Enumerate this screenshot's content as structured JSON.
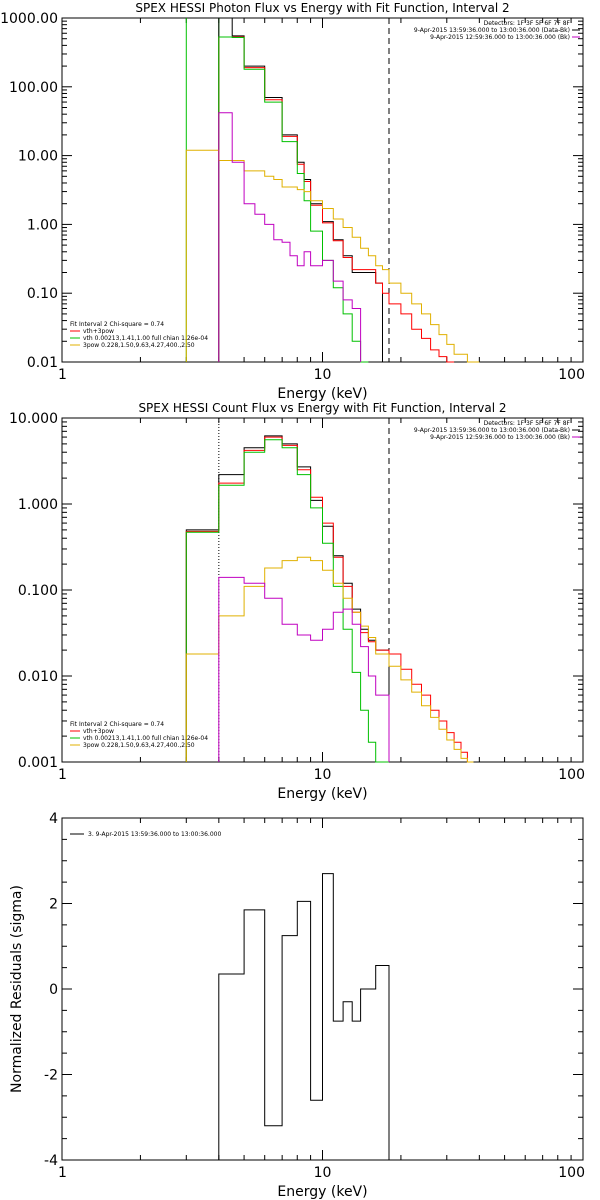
{
  "chart_data": [
    {
      "type": "line",
      "title": "SPEX HESSI Photon Flux vs Energy with Fit Function, Interval 2",
      "xlabel": "Energy (keV)",
      "ylabel": "",
      "x_scale": "log",
      "y_scale": "log",
      "xlim": [
        1,
        100
      ],
      "ylim": [
        0.01,
        1000
      ],
      "x_tick_labels": [
        "1",
        "10",
        "100"
      ],
      "y_tick_labels": [
        "0.01",
        "0.10",
        "1.00",
        "10.00",
        "100.00",
        "1000.00"
      ],
      "y_tick_values": [
        0.01,
        0.1,
        1,
        10,
        100,
        1000
      ],
      "vlines": [
        {
          "x": 3.0,
          "style": "solid",
          "color": "#00c000"
        },
        {
          "x": 4.0,
          "style": "solid",
          "color": "#00c000"
        },
        {
          "x": 18.0,
          "style": "dashed",
          "color": "#000000"
        }
      ],
      "legend_right": [
        {
          "text": "Detectors: 1F 3F 5F 6F 7F 8F",
          "color": ""
        },
        {
          "text": "9-Apr-2015 13:59:36.000 to 13:00:36.000 (Data-Bk)",
          "color": "#000000"
        },
        {
          "text": "9-Apr-2015 12:59:36.000 to 13:00:36.000 (Bk)",
          "color": "#c000c0"
        }
      ],
      "legend_left": [
        {
          "text": "Fit Interval 2   Chi-square = 0.74",
          "color": ""
        },
        {
          "text": "vth+3pow",
          "color": "#ff0000"
        },
        {
          "text": "vth 0.00213,1.41,1.00  full chian 1.26e-04",
          "color": "#00c000"
        },
        {
          "text": "3pow 0.228,1.50,9.63,4.27,400.,2.50",
          "color": "#e0b000"
        }
      ],
      "edges": [
        3.0,
        4.0,
        4.5,
        5.0,
        5.5,
        6.0,
        6.5,
        7.0,
        7.5,
        8.0,
        8.5,
        9.0,
        10.0,
        11.0,
        12.0,
        13.0,
        14.0,
        15.0,
        16.0,
        17.0,
        18.0,
        20.0,
        22.0,
        24.0,
        26.0,
        28.0,
        30.0,
        32.0,
        36.0,
        40.0
      ],
      "series": [
        {
          "name": "",
          "color": "#000000",
          "step": true,
          "start_bin": 1,
          "values": [
            1000,
            550,
            200,
            200,
            70,
            70,
            20,
            20,
            8,
            4.5,
            2.0,
            1.1,
            0.6,
            0.35,
            0.2,
            0.2,
            0.2,
            0.14
          ]
        },
        {
          "name": "vth+3pow",
          "color": "#ff0000",
          "step": true,
          "start_bin": 1,
          "values": [
            530,
            530,
            190,
            190,
            65,
            65,
            19,
            19,
            7.5,
            4.2,
            1.9,
            1.05,
            0.58,
            0.33,
            0.22,
            0.22,
            0.22,
            0.14,
            0.1,
            0.07,
            0.05,
            0.03,
            0.022,
            0.015,
            0.012,
            0.01
          ]
        },
        {
          "name": "vth",
          "color": "#00c000",
          "step": true,
          "start_bin": 1,
          "values": [
            530,
            520,
            180,
            180,
            60,
            60,
            16,
            16,
            5.5,
            2.2,
            0.8,
            0.3,
            0.12,
            0.05,
            0.02,
            0.01
          ]
        },
        {
          "name": "3pow",
          "color": "#e0b000",
          "step": true,
          "start_bin": 0,
          "values": [
            12,
            8.5,
            8.5,
            6.0,
            6.0,
            5.0,
            4.5,
            3.5,
            3.5,
            3.2,
            3.0,
            2.2,
            1.7,
            1.2,
            0.9,
            0.65,
            0.45,
            0.35,
            0.25,
            0.22,
            0.14,
            0.1,
            0.07,
            0.05,
            0.035,
            0.025,
            0.018,
            0.013,
            0.01
          ]
        },
        {
          "name": "",
          "color": "#c000c0",
          "step": true,
          "start_bin": 1,
          "values": [
            42,
            8,
            2.0,
            1.4,
            1.0,
            0.6,
            0.55,
            0.35,
            0.25,
            0.4,
            0.25,
            0.3,
            0.15,
            0.08,
            0.06
          ]
        }
      ]
    },
    {
      "type": "line",
      "title": "SPEX HESSI Count Flux vs Energy with Fit Function, Interval 2",
      "xlabel": "Energy (keV)",
      "ylabel": "",
      "x_scale": "log",
      "y_scale": "log",
      "xlim": [
        1,
        100
      ],
      "ylim": [
        0.001,
        10
      ],
      "x_tick_labels": [
        "1",
        "10",
        "100"
      ],
      "y_tick_labels": [
        "0.001",
        "0.010",
        "0.100",
        "1.000",
        "10.000"
      ],
      "y_tick_values": [
        0.001,
        0.01,
        0.1,
        1,
        10
      ],
      "vlines": [
        {
          "x": 4.0,
          "style": "dotted",
          "color": "#000000"
        },
        {
          "x": 18.0,
          "style": "dashed",
          "color": "#000000"
        }
      ],
      "legend_right": [
        {
          "text": "Detectors: 1F 3F 5F 6F 7F 8F",
          "color": ""
        },
        {
          "text": "9-Apr-2015 13:59:36.000 to 13:00:36.000 (Data-Bk)",
          "color": "#000000"
        },
        {
          "text": "9-Apr-2015 12:59:36.000 to 13:00:36.000 (Bk)",
          "color": "#c000c0"
        }
      ],
      "legend_left": [
        {
          "text": "Fit Interval 2   Chi-square = 0.74",
          "color": ""
        },
        {
          "text": "vth+3pow",
          "color": "#ff0000"
        },
        {
          "text": "vth 0.00213,1.41,1.00  full chian 1.26e-04",
          "color": "#00c000"
        },
        {
          "text": "3pow 0.228,1.50,9.63,4.27,400.,2.50",
          "color": "#e0b000"
        }
      ],
      "edges": [
        3.0,
        4.0,
        5.0,
        6.0,
        7.0,
        8.0,
        9.0,
        10.0,
        11.0,
        12.0,
        13.0,
        14.0,
        15.0,
        16.0,
        18.0,
        20.0,
        22.0,
        24.0,
        26.0,
        28.0,
        30.0,
        32.0,
        34.0,
        36.0,
        38.0,
        40.0
      ],
      "series": [
        {
          "name": "",
          "color": "#000000",
          "step": true,
          "start_bin": 0,
          "values": [
            0.5,
            2.2,
            4.5,
            6.2,
            5.0,
            2.7,
            1.1,
            0.55,
            0.25,
            0.12,
            0.06,
            0.035,
            0.026,
            0.02
          ]
        },
        {
          "name": "vth+3pow",
          "color": "#ff0000",
          "step": true,
          "start_bin": 0,
          "values": [
            0.48,
            1.75,
            4.2,
            6.0,
            4.8,
            2.5,
            1.2,
            0.6,
            0.24,
            0.11,
            0.055,
            0.032,
            0.025,
            0.02,
            0.018,
            0.012,
            0.008,
            0.006,
            0.004,
            0.003,
            0.0022,
            0.0017,
            0.0013,
            0.001
          ]
        },
        {
          "name": "vth",
          "color": "#00c000",
          "step": true,
          "start_bin": 0,
          "values": [
            0.47,
            1.65,
            4.0,
            5.6,
            4.5,
            2.2,
            0.9,
            0.35,
            0.11,
            0.035,
            0.011,
            0.004,
            0.0017,
            0.001
          ]
        },
        {
          "name": "3pow",
          "color": "#e0b000",
          "step": true,
          "start_bin": 0,
          "values": [
            0.018,
            0.05,
            0.11,
            0.18,
            0.22,
            0.24,
            0.22,
            0.17,
            0.12,
            0.08,
            0.055,
            0.038,
            0.028,
            0.018,
            0.013,
            0.009,
            0.0065,
            0.0045,
            0.0033,
            0.0024,
            0.0018,
            0.0014,
            0.0011,
            0.001
          ]
        },
        {
          "name": "",
          "color": "#c000c0",
          "step": true,
          "start_bin": 1,
          "values": [
            0.14,
            0.12,
            0.08,
            0.04,
            0.03,
            0.026,
            0.035,
            0.055,
            0.06,
            0.04,
            0.022,
            0.01,
            0.006
          ]
        }
      ]
    },
    {
      "type": "line",
      "title": "",
      "xlabel": "Energy (keV)",
      "ylabel": "Normalized Residuals (sigma)",
      "x_scale": "log",
      "y_scale": "linear",
      "xlim": [
        1,
        100
      ],
      "ylim": [
        -4,
        4
      ],
      "x_tick_labels": [
        "1",
        "10",
        "100"
      ],
      "y_tick_labels": [
        "-4",
        "-2",
        "0",
        "2",
        "4"
      ],
      "y_tick_values": [
        -4,
        -2,
        0,
        2,
        4
      ],
      "legend": {
        "text": "3.  9-Apr-2015 13:59:36.000 to 13:00:36.000",
        "position": "top-left"
      },
      "edges": [
        4.0,
        5.0,
        6.0,
        7.0,
        8.0,
        9.0,
        10.0,
        11.0,
        12.0,
        13.0,
        14.0,
        16.0,
        18.0
      ],
      "series": [
        {
          "name": "",
          "color": "#000000",
          "step": true,
          "start_bin": 0,
          "values": [
            0.35,
            1.85,
            -3.2,
            1.25,
            2.05,
            -2.6,
            2.7,
            -0.75,
            -0.3,
            -0.75,
            0.0,
            0.55
          ]
        }
      ]
    }
  ]
}
